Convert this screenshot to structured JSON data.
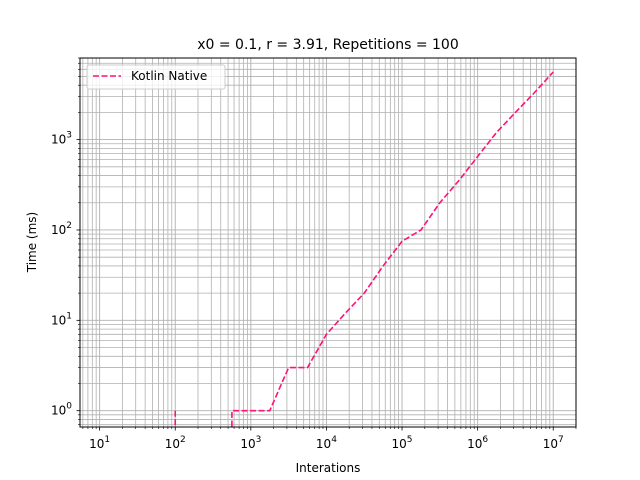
{
  "chart_data": {
    "type": "line",
    "title": "x0 = 0.1, r = 3.91, Repetitions = 100",
    "xlabel": "Interations",
    "ylabel": "Time (ms)",
    "xscale": "log",
    "yscale": "log",
    "xlim": [
      5.5,
      20000000
    ],
    "ylim": [
      0.66,
      8000
    ],
    "grid": true,
    "grid_minor": true,
    "legend": "upper-left",
    "x_ticks": [
      {
        "base": "10",
        "exp": "1",
        "value": 10
      },
      {
        "base": "10",
        "exp": "2",
        "value": 100
      },
      {
        "base": "10",
        "exp": "3",
        "value": 1000
      },
      {
        "base": "10",
        "exp": "4",
        "value": 10000
      },
      {
        "base": "10",
        "exp": "5",
        "value": 100000
      },
      {
        "base": "10",
        "exp": "6",
        "value": 1000000
      },
      {
        "base": "10",
        "exp": "7",
        "value": 10000000
      }
    ],
    "y_ticks": [
      {
        "base": "10",
        "exp": "0",
        "value": 1
      },
      {
        "base": "10",
        "exp": "1",
        "value": 10
      },
      {
        "base": "10",
        "exp": "2",
        "value": 100
      },
      {
        "base": "10",
        "exp": "3",
        "value": 1000
      }
    ],
    "series": [
      {
        "name": "Kotlin Native",
        "color": "#ff1177",
        "style": "dashed",
        "points": [
          [
            100,
            1
          ],
          [
            100,
            0
          ],
          [
            562,
            0
          ],
          [
            562,
            1
          ],
          [
            1000,
            1
          ],
          [
            1778,
            1
          ],
          [
            3162,
            3
          ],
          [
            5623,
            3
          ],
          [
            10000,
            7
          ],
          [
            17783,
            12
          ],
          [
            31623,
            20
          ],
          [
            56234,
            40
          ],
          [
            100000,
            75
          ],
          [
            177828,
            100
          ],
          [
            316228,
            200
          ],
          [
            562341,
            350
          ],
          [
            1000000,
            650
          ],
          [
            1778279,
            1200
          ],
          [
            3162278,
            2000
          ],
          [
            5623413,
            3300
          ],
          [
            10000000,
            5600
          ]
        ]
      }
    ]
  }
}
